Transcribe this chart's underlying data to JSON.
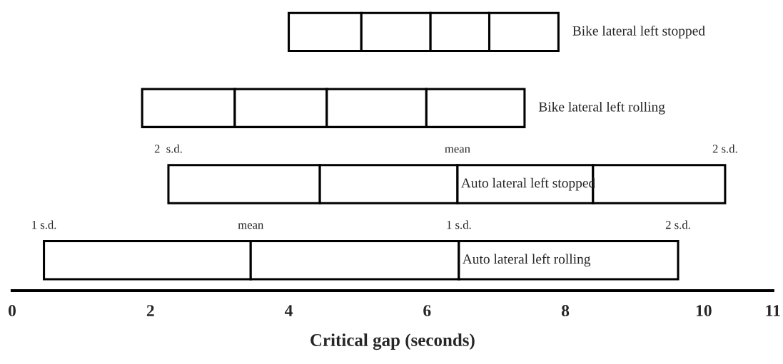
{
  "chart_data": {
    "type": "bar",
    "orientation": "horizontal",
    "categories": [
      "Bike lateral left stopped",
      "Bike lateral left rolling",
      "Auto lateral left stopped",
      "Auto lateral left rolling"
    ],
    "series": [
      {
        "color": "#ffffff",
        "base": [
          4.0,
          1.88,
          2.26,
          0.46
        ],
        "values": [
          1.05,
          1.34,
          2.19,
          2.99
        ]
      },
      {
        "color": "#ffffff",
        "base": [
          5.05,
          3.22,
          4.45,
          3.45
        ],
        "values": [
          1.0,
          1.33,
          1.99,
          3.01
        ]
      },
      {
        "color": "#ffffff",
        "base": [
          6.05,
          4.55,
          6.44,
          6.46
        ],
        "values": [
          0.85,
          1.44,
          1.96,
          3.17
        ]
      },
      {
        "color": "#ffffff",
        "base": [
          6.9,
          5.99,
          8.4,
          null
        ],
        "values": [
          1.0,
          1.42,
          1.91,
          null
        ]
      }
    ],
    "xlabel": "Critical gap (seconds)",
    "xlim": [
      0,
      11
    ],
    "xticks": [
      0,
      2,
      4,
      6,
      8,
      10,
      11
    ],
    "tick_labels": "x",
    "grid": false,
    "legend": false,
    "annotations": [
      "2  s.d.",
      "mean",
      "2 s.d.",
      "1 s.d.",
      "mean",
      "1 s.d.",
      "2 s.d."
    ]
  }
}
